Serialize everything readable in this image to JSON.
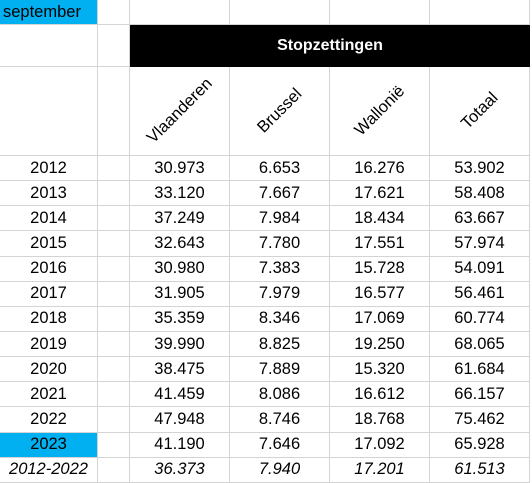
{
  "sheet": {
    "month": "september",
    "title": "Stopzettingen",
    "headers": [
      "Vlaanderen",
      "Brussel",
      "Wallonië",
      "Totaal"
    ],
    "rows": [
      {
        "year": "2012",
        "vlaanderen": "30.973",
        "brussel": "6.653",
        "wallonie": "16.276",
        "totaal": "53.902"
      },
      {
        "year": "2013",
        "vlaanderen": "33.120",
        "brussel": "7.667",
        "wallonie": "17.621",
        "totaal": "58.408"
      },
      {
        "year": "2014",
        "vlaanderen": "37.249",
        "brussel": "7.984",
        "wallonie": "18.434",
        "totaal": "63.667"
      },
      {
        "year": "2015",
        "vlaanderen": "32.643",
        "brussel": "7.780",
        "wallonie": "17.551",
        "totaal": "57.974"
      },
      {
        "year": "2016",
        "vlaanderen": "30.980",
        "brussel": "7.383",
        "wallonie": "15.728",
        "totaal": "54.091"
      },
      {
        "year": "2017",
        "vlaanderen": "31.905",
        "brussel": "7.979",
        "wallonie": "16.577",
        "totaal": "56.461"
      },
      {
        "year": "2018",
        "vlaanderen": "35.359",
        "brussel": "8.346",
        "wallonie": "17.069",
        "totaal": "60.774"
      },
      {
        "year": "2019",
        "vlaanderen": "39.990",
        "brussel": "8.825",
        "wallonie": "19.250",
        "totaal": "68.065"
      },
      {
        "year": "2020",
        "vlaanderen": "38.475",
        "brussel": "7.889",
        "wallonie": "15.320",
        "totaal": "61.684"
      },
      {
        "year": "2021",
        "vlaanderen": "41.459",
        "brussel": "8.086",
        "wallonie": "16.612",
        "totaal": "66.157"
      },
      {
        "year": "2022",
        "vlaanderen": "47.948",
        "brussel": "8.746",
        "wallonie": "18.768",
        "totaal": "75.462"
      },
      {
        "year": "2023",
        "vlaanderen": "41.190",
        "brussel": "7.646",
        "wallonie": "17.092",
        "totaal": "65.928"
      }
    ],
    "average": {
      "label": "2012-2022",
      "vlaanderen": "36.373",
      "brussel": "7.940",
      "wallonie": "17.201",
      "totaal": "61.513"
    },
    "colors": {
      "highlight": "#00b0f0",
      "title_bg": "#000000",
      "gridline": "#d4d4d4"
    }
  }
}
